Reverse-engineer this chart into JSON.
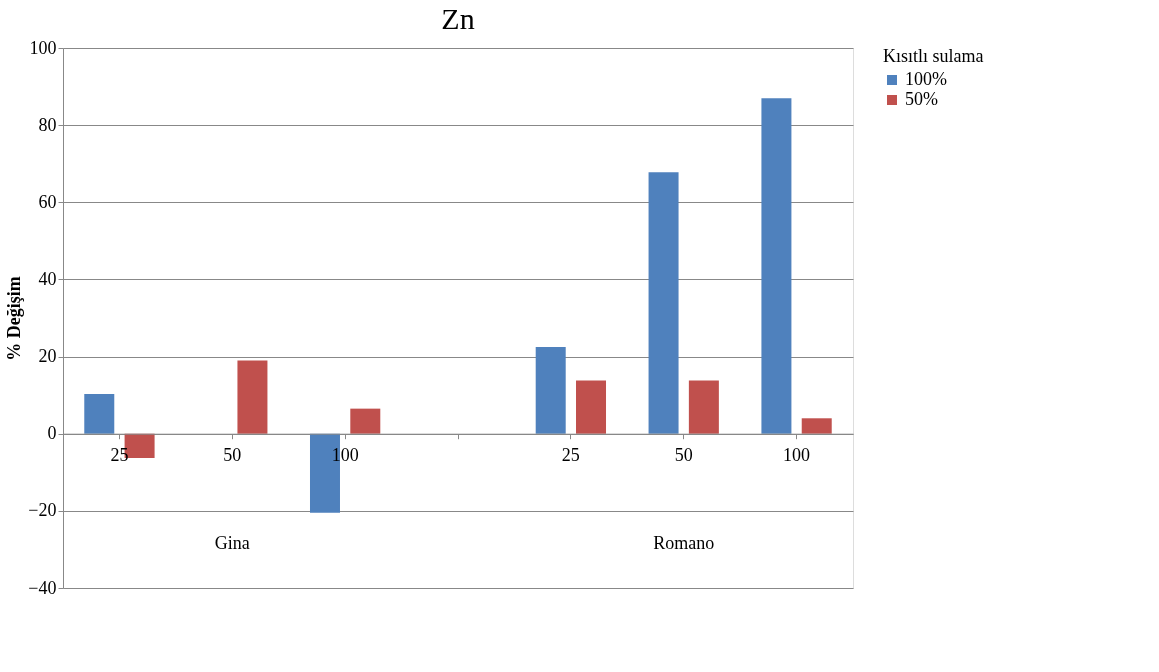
{
  "chart_data": {
    "type": "bar",
    "title": "Zn",
    "ylabel": "% Değişim",
    "legend_title": "Kısıtlı sulama",
    "categories": [
      "25",
      "50",
      "100",
      null,
      "25",
      "50",
      "100"
    ],
    "series": [
      {
        "name": "100%",
        "color": "#4f81bd",
        "values": [
          10.3,
          0,
          -20.5,
          null,
          22.5,
          67.8,
          87
        ]
      },
      {
        "name": "50%",
        "color": "#c0504d",
        "values": [
          -6.3,
          19,
          6.5,
          null,
          13.8,
          13.8,
          4
        ]
      }
    ],
    "annotations": [
      "Gina",
      "Romano"
    ],
    "ylim": [
      -40,
      100
    ],
    "yticks": [
      -40,
      -20,
      0,
      20,
      40,
      60,
      80,
      100
    ],
    "grid": "y",
    "legend": "right"
  }
}
